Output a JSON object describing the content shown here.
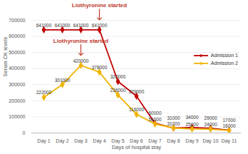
{
  "chart_data": {
    "type": "line",
    "x_label": "Days of hospital stay",
    "y_label": "Serum CK levels",
    "categories": [
      "Day 1",
      "Day 2",
      "Day 3",
      "Day 4",
      "Day 5",
      "Day 6",
      "Day 7",
      "Day 8",
      "Day 9",
      "Day 10",
      "Day 11"
    ],
    "series": [
      {
        "name": "Admission 1",
        "color": "#c00000",
        "marker": "diamond",
        "line_style": "solid",
        "values": [
          641000,
          641000,
          641000,
          641000,
          320000,
          229000,
          60000,
          31000,
          34000,
          29000,
          17000
        ]
      },
      {
        "name": "Admission 2",
        "color": "#f0b400",
        "marker": "diamond",
        "line_style": "solid",
        "values": [
          222000,
          301000,
          420000,
          378000,
          236000,
          116000,
          56000,
          31000,
          25000,
          24000,
          16000
        ]
      }
    ],
    "ylim": [
      0,
      700000
    ],
    "yticks": [
      0,
      100000,
      200000,
      300000,
      400000,
      500000,
      600000,
      700000
    ],
    "grid": true,
    "legend": "right",
    "data_labels": true,
    "annotations": [
      {
        "text": "Liothyronine started",
        "series": "Admission 1",
        "x": "Day 4"
      },
      {
        "text": "Liothyronine started",
        "series": "Admission 2",
        "x": "Day 3"
      }
    ]
  }
}
